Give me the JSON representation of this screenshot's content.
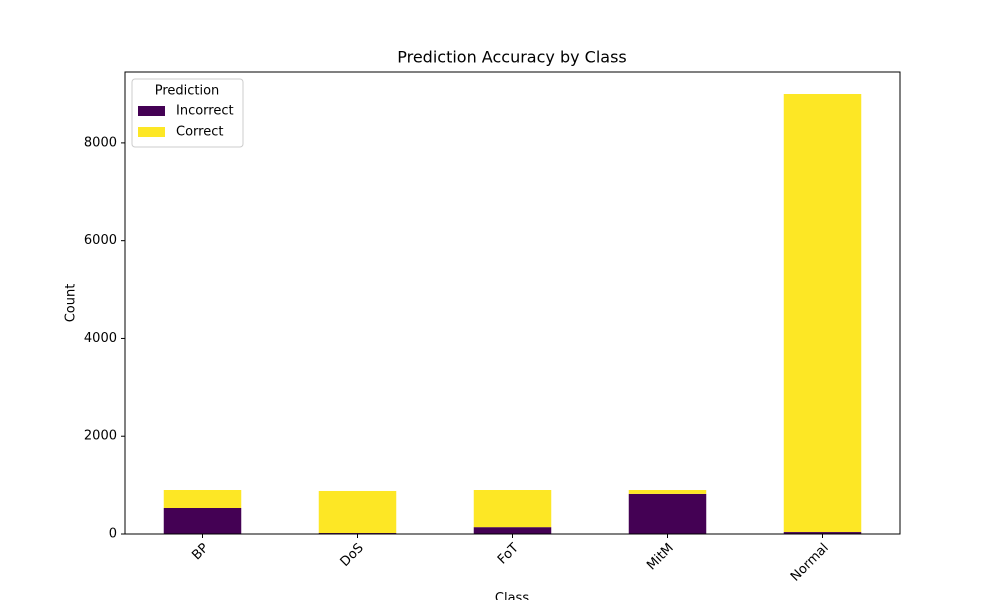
{
  "chart_data": {
    "type": "stacked_bar",
    "title": "Prediction Accuracy by Class",
    "x_label": "Class",
    "y_label": "Count",
    "categories": [
      "BP",
      "DoS",
      "FoT",
      "MitM",
      "Normal"
    ],
    "series": [
      {
        "name": "Incorrect",
        "color": "#440154",
        "values": [
          532,
          20,
          140,
          820,
          40
        ]
      },
      {
        "name": "Correct",
        "color": "#fde725",
        "values": [
          368,
          860,
          760,
          80,
          8960
        ]
      }
    ],
    "legend_title": "Prediction",
    "legend": "upper left",
    "ylim": [
      0,
      9450
    ],
    "yticks": [
      0,
      2000,
      4000,
      6000,
      8000
    ]
  }
}
